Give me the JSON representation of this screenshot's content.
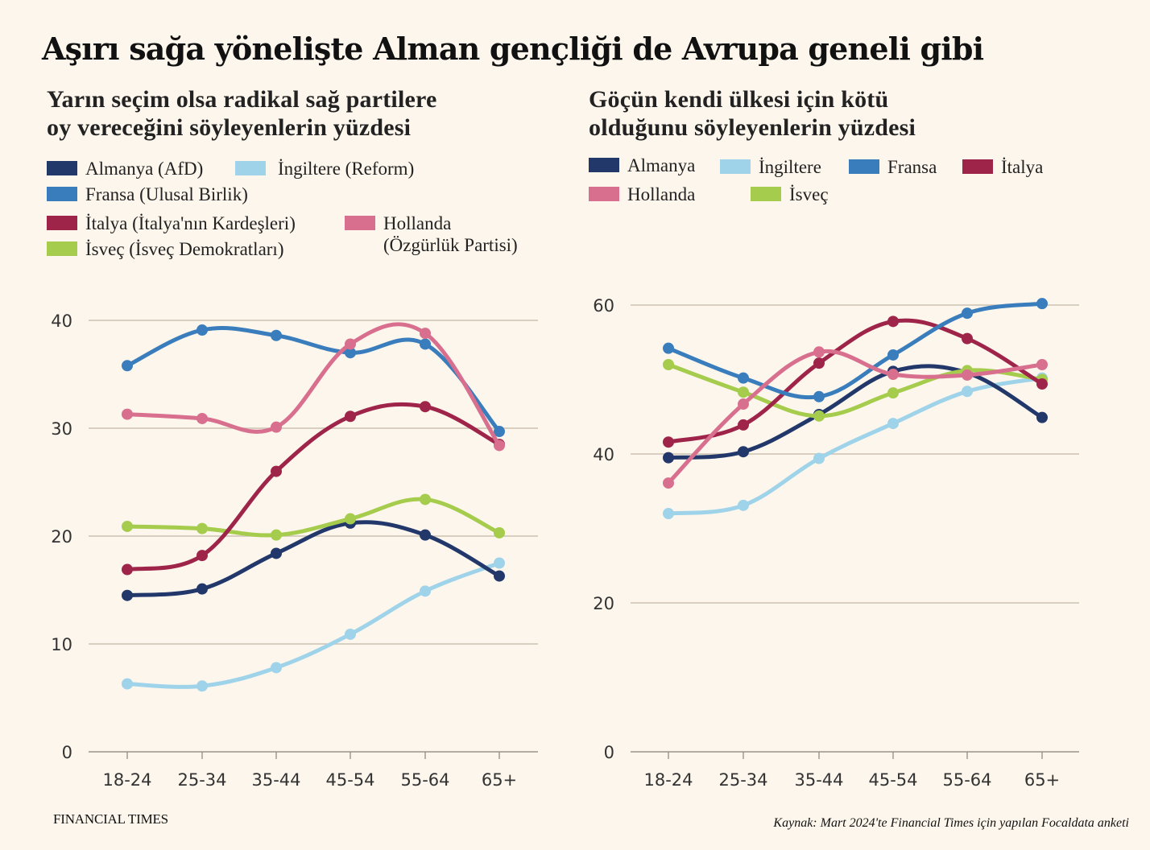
{
  "title": "Aşırı sağa yönelişte Alman gençliği de Avrupa geneli gibi",
  "footer": {
    "brand": "FINANCIAL TIMES",
    "source": "Kaynak: Mart 2024'te Financial Times için yapılan Focaldata anketi"
  },
  "colors": {
    "almanya": "#22386b",
    "ingiltere": "#9fd3ea",
    "fransa": "#3a7dbd",
    "italya": "#9e2449",
    "hollanda": "#d86f8e",
    "isvec": "#a5cc4c",
    "grid": "#cbc2b2",
    "background": "#fdf6ec"
  },
  "chart_data": [
    {
      "type": "line",
      "title": "Yarın seçim olsa radikal sağ partilere oy vereceğini söyleyenlerin yüzdesi",
      "title_lines": [
        "Yarın seçim olsa radikal sağ partilere",
        "oy vereceğini söyleyenlerin yüzdesi"
      ],
      "xlabel": "",
      "ylabel": "",
      "categories": [
        "18-24",
        "25-34",
        "35-44",
        "45-54",
        "55-64",
        "65+"
      ],
      "ylim": [
        0,
        40
      ],
      "yticks": [
        0,
        10,
        20,
        30,
        40
      ],
      "grid": true,
      "legend_position": "top-left",
      "series": [
        {
          "key": "almanya",
          "name": "Almanya (AfD)",
          "values": [
            14.5,
            15.1,
            18.4,
            21.2,
            20.1,
            16.3
          ]
        },
        {
          "key": "ingiltere",
          "name": "İngiltere (Reform)",
          "values": [
            6.3,
            6.1,
            7.8,
            10.9,
            14.9,
            17.5
          ]
        },
        {
          "key": "fransa",
          "name": "Fransa (Ulusal Birlik)",
          "values": [
            35.8,
            39.1,
            38.6,
            37.0,
            37.8,
            29.7
          ]
        },
        {
          "key": "italya",
          "name": "İtalya (İtalya'nın Kardeşleri)",
          "values": [
            16.9,
            18.2,
            26.0,
            31.1,
            32.0,
            28.5
          ]
        },
        {
          "key": "hollanda",
          "name": "Hollanda\n(Özgürlük Partisi)",
          "values": [
            31.3,
            30.9,
            30.1,
            37.8,
            38.8,
            28.4
          ]
        },
        {
          "key": "isvec",
          "name": "İsveç (İsveç Demokratları)",
          "values": [
            20.9,
            20.7,
            20.1,
            21.6,
            23.4,
            20.3
          ]
        }
      ]
    },
    {
      "type": "line",
      "title": "Göçün kendi ülkesi için kötü olduğunu söyleyenlerin yüzdesi",
      "title_lines": [
        "Göçün kendi ülkesi için kötü",
        "olduğunu söyleyenlerin yüzdesi"
      ],
      "xlabel": "",
      "ylabel": "",
      "categories": [
        "18-24",
        "25-34",
        "35-44",
        "45-54",
        "55-64",
        "65+"
      ],
      "ylim": [
        0,
        60
      ],
      "yticks": [
        0,
        20,
        40,
        60
      ],
      "grid": true,
      "legend_position": "top-left",
      "series": [
        {
          "key": "almanya",
          "name": "Almanya",
          "values": [
            39.5,
            40.3,
            45.3,
            51.1,
            50.9,
            44.9
          ]
        },
        {
          "key": "ingiltere",
          "name": "İngiltere",
          "values": [
            32.0,
            33.1,
            39.4,
            44.1,
            48.4,
            50.2
          ]
        },
        {
          "key": "fransa",
          "name": "Fransa",
          "values": [
            54.2,
            50.2,
            47.7,
            53.3,
            58.9,
            60.2
          ]
        },
        {
          "key": "italya",
          "name": "İtalya",
          "values": [
            41.6,
            43.9,
            52.2,
            57.8,
            55.5,
            49.4
          ]
        },
        {
          "key": "hollanda",
          "name": "Hollanda",
          "values": [
            36.1,
            46.7,
            53.7,
            50.7,
            50.6,
            52.0
          ]
        },
        {
          "key": "isvec",
          "name": "İsveç",
          "values": [
            52.0,
            48.3,
            45.1,
            48.2,
            51.2,
            50.0
          ]
        }
      ]
    }
  ]
}
